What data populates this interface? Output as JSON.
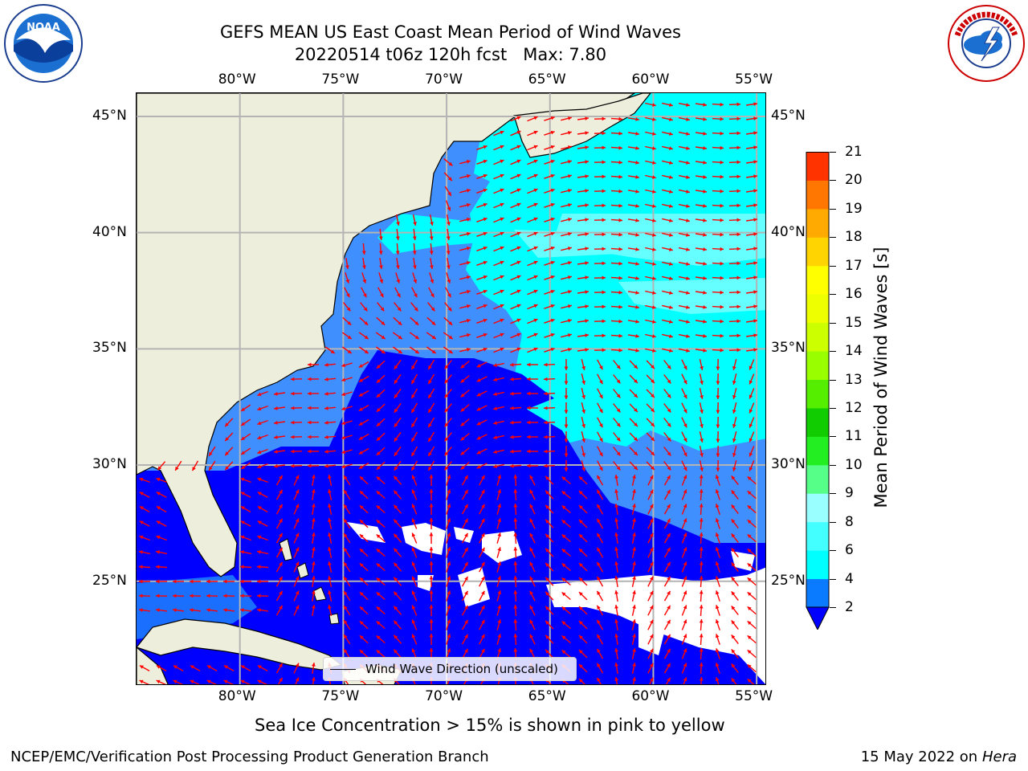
{
  "header": {
    "title_line1": "GEFS MEAN US East Coast Mean Period of Wind Waves",
    "title_line2": "20220514 t06z 120h fcst   Max: 7.80"
  },
  "logos": {
    "left_text": "NOAA",
    "left_ring_text": "NATIONAL OCEANIC AND ATMOSPHERIC ADMINISTRATION · U.S. DEPARTMENT OF COMMERCE",
    "right_ring_text": "NATIONAL WEATHER SERVICE"
  },
  "map": {
    "lon_range": [
      -85,
      -54.5
    ],
    "lat_range": [
      20.5,
      46
    ],
    "lon_ticks": [
      {
        "lon": -80,
        "label": "80°W"
      },
      {
        "lon": -75,
        "label": "75°W"
      },
      {
        "lon": -70,
        "label": "70°W"
      },
      {
        "lon": -65,
        "label": "65°W"
      },
      {
        "lon": -60,
        "label": "60°W"
      },
      {
        "lon": -55,
        "label": "55°W"
      }
    ],
    "lat_ticks": [
      {
        "lat": 45,
        "label": "45°N"
      },
      {
        "lat": 40,
        "label": "40°N"
      },
      {
        "lat": 35,
        "label": "35°N"
      },
      {
        "lat": 30,
        "label": "30°N"
      },
      {
        "lat": 25,
        "label": "25°N"
      }
    ],
    "colors": {
      "land": "#eeeedc",
      "ocean_default": "#3f8fff",
      "arrow": "#ff0000",
      "grid": "#b4b4b4",
      "coast": "#000000"
    },
    "legend_label": "Wind Wave Direction (unscaled)"
  },
  "colorbar": {
    "title": "Mean Period of Wind Waves [s]",
    "ticks": [
      2,
      4,
      6,
      8,
      9,
      10,
      11,
      12,
      13,
      14,
      15,
      16,
      17,
      18,
      19,
      20,
      21
    ],
    "colors": [
      "#0a7aff",
      "#00ffff",
      "#44ffff",
      "#99ffff",
      "#55ff88",
      "#22ee22",
      "#11cc00",
      "#55ee00",
      "#99ff00",
      "#ccff00",
      "#eeff00",
      "#ffff00",
      "#ffd400",
      "#ffaa00",
      "#ff7700",
      "#ff3300",
      "#ff0000"
    ],
    "extend_color": "#0000ff"
  },
  "footer": {
    "ice_note": "Sea Ice Concentration > 15% is shown in pink to yellow",
    "credit": "NCEP/EMC/Verification Post Processing Product Generation Branch",
    "date": "15 May 2022 on",
    "machine": "Hera"
  }
}
